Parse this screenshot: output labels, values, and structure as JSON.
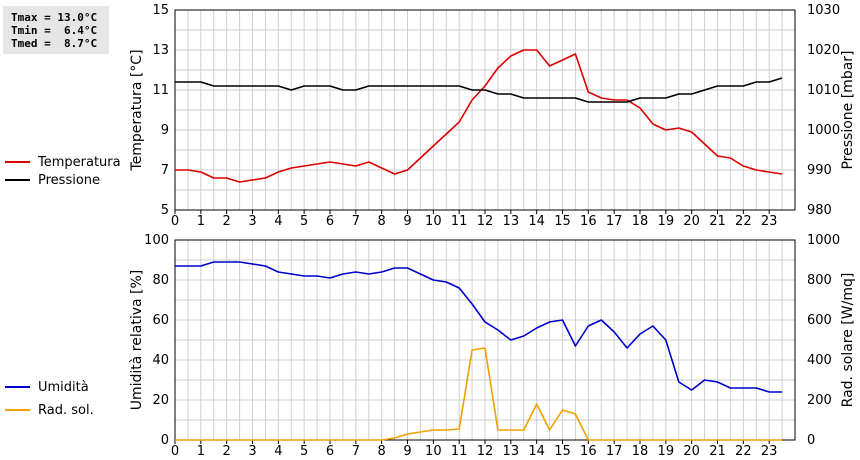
{
  "stats": {
    "tmax": "Tmax = 13.0°C",
    "tmin": "Tmin =  6.4°C",
    "tmed": "Tmed =  8.7°C"
  },
  "chart_data": [
    {
      "type": "line",
      "xlim": [
        0,
        24
      ],
      "x_ticks": [
        "0",
        "1",
        "2",
        "3",
        "4",
        "5",
        "6",
        "7",
        "8",
        "9",
        "10",
        "11",
        "12",
        "13",
        "14",
        "15",
        "16",
        "17",
        "18",
        "19",
        "20",
        "21",
        "22",
        "23"
      ],
      "ylabel_left": "Temperatura [°C]",
      "ylim_left": [
        5,
        15
      ],
      "y_ticks_left": [
        "5",
        "7",
        "9",
        "11",
        "13",
        "15"
      ],
      "ylabel_right": "Pressione [mbar]",
      "ylim_right": [
        980,
        1030
      ],
      "y_ticks_right": [
        "980",
        "990",
        "1000",
        "1010",
        "1020",
        "1030"
      ],
      "grid": true,
      "legend_position": "left",
      "series": [
        {
          "name": "Temperatura",
          "color": "#dd0000",
          "axis": "left",
          "x": [
            0,
            0.5,
            1,
            1.5,
            2,
            2.5,
            3,
            3.5,
            4,
            4.5,
            5,
            5.5,
            6,
            6.5,
            7,
            7.5,
            8,
            8.5,
            9,
            9.5,
            10,
            10.5,
            11,
            11.5,
            12,
            12.5,
            13,
            13.5,
            14,
            14.5,
            15,
            15.5,
            16,
            16.5,
            17,
            17.5,
            18,
            18.5,
            19,
            19.5,
            20,
            20.5,
            21,
            21.5,
            22,
            22.5,
            23,
            23.5
          ],
          "values": [
            7.0,
            7.0,
            6.9,
            6.6,
            6.6,
            6.4,
            6.5,
            6.6,
            6.9,
            7.1,
            7.2,
            7.3,
            7.4,
            7.3,
            7.2,
            7.4,
            7.1,
            6.8,
            7.0,
            7.6,
            8.2,
            8.8,
            9.4,
            10.5,
            11.2,
            12.1,
            12.7,
            13.0,
            13.0,
            12.2,
            12.5,
            12.8,
            10.9,
            10.6,
            10.5,
            10.5,
            10.1,
            9.3,
            9.0,
            9.1,
            8.9,
            8.3,
            7.7,
            7.6,
            7.2,
            7.0,
            6.9,
            6.8
          ]
        },
        {
          "name": "Pressione",
          "color": "#000000",
          "axis": "right",
          "x": [
            0,
            0.5,
            1,
            1.5,
            2,
            2.5,
            3,
            3.5,
            4,
            4.5,
            5,
            5.5,
            6,
            6.5,
            7,
            7.5,
            8,
            8.5,
            9,
            9.5,
            10,
            10.5,
            11,
            11.5,
            12,
            12.5,
            13,
            13.5,
            14,
            14.5,
            15,
            15.5,
            16,
            16.5,
            17,
            17.5,
            18,
            18.5,
            19,
            19.5,
            20,
            20.5,
            21,
            21.5,
            22,
            22.5,
            23,
            23.5
          ],
          "values": [
            1012,
            1012,
            1012,
            1011,
            1011,
            1011,
            1011,
            1011,
            1011,
            1010,
            1011,
            1011,
            1011,
            1010,
            1010,
            1011,
            1011,
            1011,
            1011,
            1011,
            1011,
            1011,
            1011,
            1010,
            1010,
            1009,
            1009,
            1008,
            1008,
            1008,
            1008,
            1008,
            1007,
            1007,
            1007,
            1007,
            1008,
            1008,
            1008,
            1009,
            1009,
            1010,
            1011,
            1011,
            1011,
            1012,
            1012,
            1013
          ]
        }
      ]
    },
    {
      "type": "line",
      "xlim": [
        0,
        24
      ],
      "x_ticks": [
        "0",
        "1",
        "2",
        "3",
        "4",
        "5",
        "6",
        "7",
        "8",
        "9",
        "10",
        "11",
        "12",
        "13",
        "14",
        "15",
        "16",
        "17",
        "18",
        "19",
        "20",
        "21",
        "22",
        "23"
      ],
      "ylabel_left": "Umidità relativa [%]",
      "ylim_left": [
        0,
        100
      ],
      "y_ticks_left": [
        "0",
        "20",
        "40",
        "60",
        "80",
        "100"
      ],
      "ylabel_right": "Rad. solare [W/mq]",
      "ylim_right": [
        0,
        1000
      ],
      "y_ticks_right": [
        "0",
        "200",
        "400",
        "600",
        "800",
        "1000"
      ],
      "grid": true,
      "legend_position": "left",
      "series": [
        {
          "name": "Umidità",
          "color": "#0000cc",
          "axis": "left",
          "x": [
            0,
            0.5,
            1,
            1.5,
            2,
            2.5,
            3,
            3.5,
            4,
            4.5,
            5,
            5.5,
            6,
            6.5,
            7,
            7.5,
            8,
            8.5,
            9,
            9.5,
            10,
            10.5,
            11,
            11.5,
            12,
            12.5,
            13,
            13.5,
            14,
            14.5,
            15,
            15.5,
            16,
            16.5,
            17,
            17.5,
            18,
            18.5,
            19,
            19.5,
            20,
            20.5,
            21,
            21.5,
            22,
            22.5,
            23,
            23.5
          ],
          "values": [
            87,
            87,
            87,
            89,
            89,
            89,
            88,
            87,
            84,
            83,
            82,
            82,
            81,
            83,
            84,
            83,
            84,
            86,
            86,
            83,
            80,
            79,
            76,
            68,
            59,
            55,
            50,
            52,
            56,
            59,
            60,
            47,
            57,
            60,
            54,
            46,
            53,
            57,
            50,
            29,
            25,
            30,
            29,
            26,
            26,
            26,
            24,
            24
          ]
        },
        {
          "name": "Rad. sol.",
          "color": "#f0a000",
          "axis": "right",
          "x": [
            0,
            0.5,
            1,
            1.5,
            2,
            2.5,
            3,
            3.5,
            4,
            4.5,
            5,
            5.5,
            6,
            6.5,
            7,
            7.5,
            8,
            8.5,
            9,
            9.5,
            10,
            10.5,
            11,
            11.5,
            12,
            12.5,
            13,
            13.5,
            14,
            14.5,
            15,
            15.5,
            16,
            16.5,
            17,
            17.5,
            18,
            18.5,
            19,
            19.5,
            20,
            20.5,
            21,
            21.5,
            22,
            22.5,
            23,
            23.5
          ],
          "values": [
            0,
            0,
            0,
            0,
            0,
            0,
            0,
            0,
            0,
            0,
            0,
            0,
            0,
            0,
            0,
            0,
            0,
            10,
            30,
            40,
            50,
            50,
            55,
            450,
            460,
            50,
            50,
            50,
            180,
            50,
            150,
            130,
            0,
            0,
            0,
            0,
            0,
            0,
            0,
            0,
            0,
            0,
            0,
            0,
            0,
            0,
            0,
            0
          ]
        }
      ]
    }
  ]
}
